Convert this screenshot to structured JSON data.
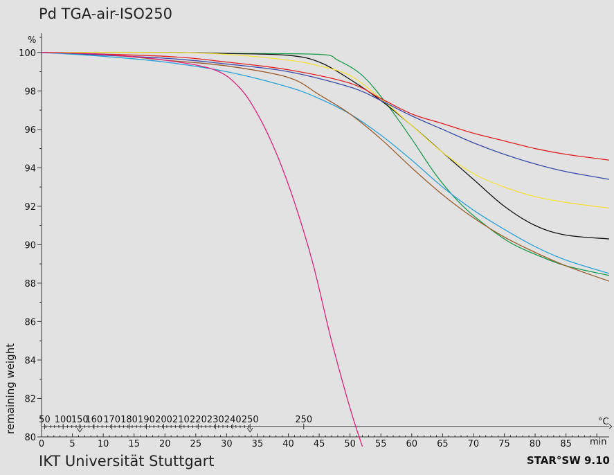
{
  "header": {
    "title": "Pd TGA-air-ISO250"
  },
  "footer": {
    "institution": "IKT Universität Stuttgart",
    "software": "STAR°SW 9.10"
  },
  "colors": {
    "background": "#e2e2e2",
    "green": "#1a9a4a",
    "black": "#111111",
    "yellow": "#f2e23a",
    "red": "#e02020",
    "blue": "#3a4aa8",
    "cyan": "#2aa0d8",
    "brown": "#9a5a2a",
    "magenta": "#e0207a"
  },
  "chart_data": {
    "type": "line",
    "title": "Pd TGA-air-ISO250",
    "ylabel": "remaining weight",
    "y_unit": "%",
    "xlabel": "min",
    "temp_unit": "°C",
    "xlim": [
      0,
      92
    ],
    "ylim": [
      80,
      101
    ],
    "y_ticks": [
      80,
      82,
      84,
      86,
      88,
      90,
      92,
      94,
      96,
      98,
      100
    ],
    "x_ticks": [
      0,
      5,
      10,
      15,
      20,
      25,
      30,
      35,
      40,
      45,
      50,
      55,
      60,
      65,
      70,
      75,
      80,
      85
    ],
    "temperature_ticks": [
      {
        "time": 0.5,
        "label": "50"
      },
      {
        "time": 3.5,
        "label": "100"
      },
      {
        "time": 6.2,
        "label": "150"
      },
      {
        "time": 8.5,
        "label": "160"
      },
      {
        "time": 11.4,
        "label": "170"
      },
      {
        "time": 14.2,
        "label": "180"
      },
      {
        "time": 17.0,
        "label": "190"
      },
      {
        "time": 19.8,
        "label": "200"
      },
      {
        "time": 22.6,
        "label": "210"
      },
      {
        "time": 25.4,
        "label": "220"
      },
      {
        "time": 28.2,
        "label": "230"
      },
      {
        "time": 31.0,
        "label": "240"
      },
      {
        "time": 33.8,
        "label": "250"
      },
      {
        "time": 42.5,
        "label": "250"
      }
    ],
    "temperature_markers": [
      6.2,
      33.8
    ],
    "grid": false,
    "series": [
      {
        "color": "green",
        "points": [
          [
            0,
            100
          ],
          [
            20,
            100
          ],
          [
            30,
            99.95
          ],
          [
            45,
            99.9
          ],
          [
            48,
            99.6
          ],
          [
            52,
            98.8
          ],
          [
            56,
            97.3
          ],
          [
            60,
            95.5
          ],
          [
            64,
            93.6
          ],
          [
            68,
            92.1
          ],
          [
            72,
            91.0
          ],
          [
            76,
            90.1
          ],
          [
            80,
            89.5
          ],
          [
            85,
            88.9
          ],
          [
            92,
            88.4
          ]
        ]
      },
      {
        "color": "black",
        "points": [
          [
            0,
            100
          ],
          [
            20,
            100
          ],
          [
            30,
            99.95
          ],
          [
            40,
            99.85
          ],
          [
            45,
            99.5
          ],
          [
            50,
            98.6
          ],
          [
            55,
            97.5
          ],
          [
            60,
            96.2
          ],
          [
            65,
            94.8
          ],
          [
            70,
            93.4
          ],
          [
            75,
            92.0
          ],
          [
            80,
            91.0
          ],
          [
            85,
            90.5
          ],
          [
            92,
            90.3
          ]
        ]
      },
      {
        "color": "yellow",
        "points": [
          [
            0,
            100
          ],
          [
            20,
            100
          ],
          [
            30,
            99.9
          ],
          [
            40,
            99.6
          ],
          [
            45,
            99.3
          ],
          [
            50,
            98.8
          ],
          [
            55,
            97.6
          ],
          [
            60,
            96.2
          ],
          [
            65,
            94.8
          ],
          [
            70,
            93.7
          ],
          [
            75,
            93.0
          ],
          [
            80,
            92.5
          ],
          [
            85,
            92.2
          ],
          [
            92,
            91.9
          ]
        ]
      },
      {
        "color": "red",
        "points": [
          [
            0,
            100
          ],
          [
            20,
            99.8
          ],
          [
            30,
            99.5
          ],
          [
            40,
            99.1
          ],
          [
            50,
            98.4
          ],
          [
            55,
            97.6
          ],
          [
            60,
            96.8
          ],
          [
            65,
            96.3
          ],
          [
            70,
            95.8
          ],
          [
            75,
            95.4
          ],
          [
            80,
            95.0
          ],
          [
            85,
            94.7
          ],
          [
            92,
            94.4
          ]
        ]
      },
      {
        "color": "blue",
        "points": [
          [
            0,
            100
          ],
          [
            20,
            99.7
          ],
          [
            30,
            99.4
          ],
          [
            40,
            99.0
          ],
          [
            50,
            98.2
          ],
          [
            55,
            97.5
          ],
          [
            60,
            96.7
          ],
          [
            65,
            96.0
          ],
          [
            70,
            95.3
          ],
          [
            75,
            94.7
          ],
          [
            80,
            94.2
          ],
          [
            85,
            93.8
          ],
          [
            92,
            93.4
          ]
        ]
      },
      {
        "color": "cyan",
        "points": [
          [
            0,
            100
          ],
          [
            10,
            99.8
          ],
          [
            20,
            99.5
          ],
          [
            30,
            99.0
          ],
          [
            40,
            98.2
          ],
          [
            45,
            97.6
          ],
          [
            50,
            96.8
          ],
          [
            55,
            95.7
          ],
          [
            60,
            94.4
          ],
          [
            65,
            93.0
          ],
          [
            70,
            91.8
          ],
          [
            75,
            90.8
          ],
          [
            80,
            89.9
          ],
          [
            85,
            89.2
          ],
          [
            92,
            88.5
          ]
        ]
      },
      {
        "color": "brown",
        "points": [
          [
            0,
            100
          ],
          [
            10,
            99.9
          ],
          [
            20,
            99.6
          ],
          [
            30,
            99.3
          ],
          [
            40,
            98.7
          ],
          [
            45,
            97.8
          ],
          [
            50,
            96.8
          ],
          [
            55,
            95.5
          ],
          [
            60,
            94.0
          ],
          [
            65,
            92.6
          ],
          [
            70,
            91.4
          ],
          [
            75,
            90.4
          ],
          [
            80,
            89.6
          ],
          [
            85,
            88.9
          ],
          [
            92,
            88.1
          ]
        ]
      },
      {
        "color": "magenta",
        "points": [
          [
            0,
            100
          ],
          [
            10,
            99.9
          ],
          [
            20,
            99.6
          ],
          [
            28,
            99.1
          ],
          [
            32,
            98.2
          ],
          [
            35,
            96.8
          ],
          [
            38,
            94.8
          ],
          [
            41,
            92.2
          ],
          [
            44,
            89.0
          ],
          [
            47,
            85.0
          ],
          [
            50,
            81.5
          ],
          [
            52,
            79.5
          ]
        ]
      }
    ]
  }
}
